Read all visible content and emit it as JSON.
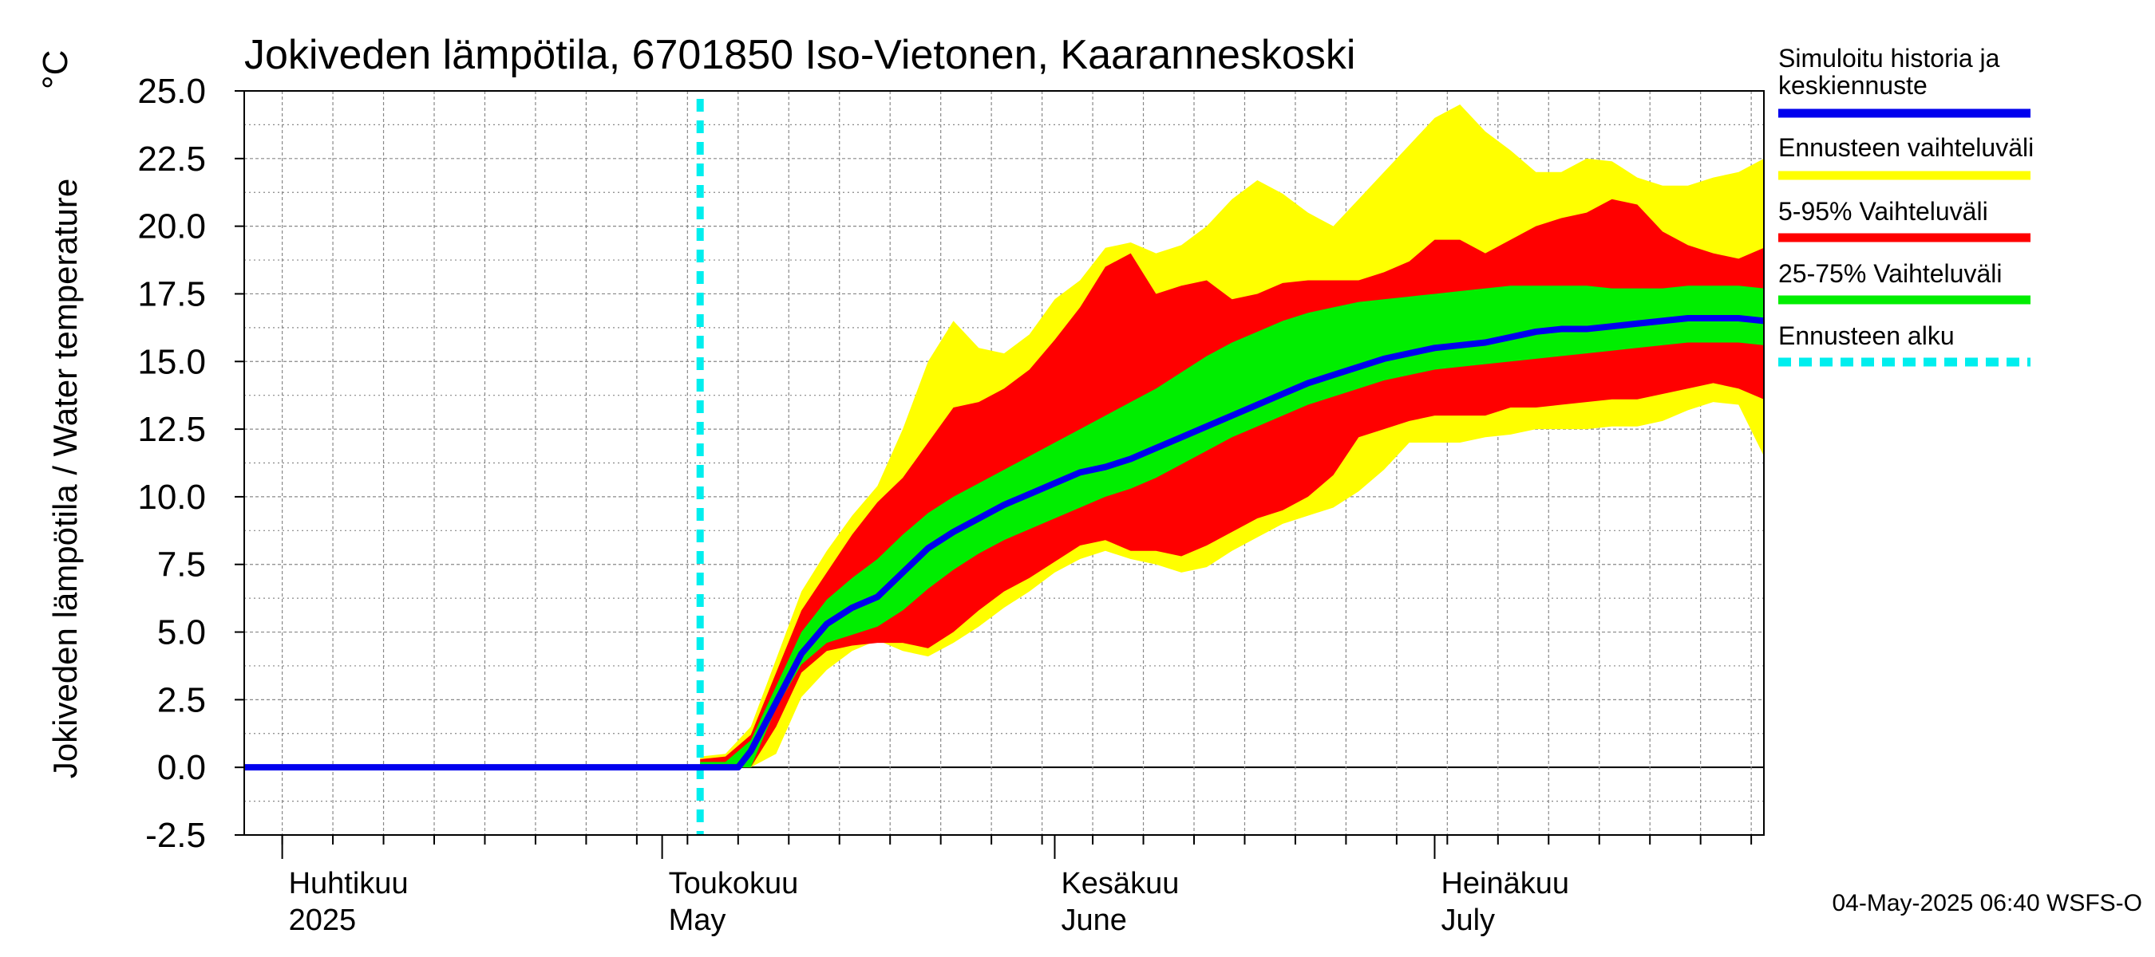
{
  "chart_data": {
    "type": "area",
    "title": "Jokiveden lämpötila, 6701850 Iso-Vietonen, Kaaranneskoski",
    "unit": "°C",
    "ylabel": "Jokiveden lämpötila / Water temperature",
    "ylim": [
      -2.5,
      25.0
    ],
    "yticks": [
      "25.0",
      "22.5",
      "20.0",
      "17.5",
      "15.0",
      "12.5",
      "10.0",
      "7.5",
      "5.0",
      "2.5",
      "0.0",
      "-2.5"
    ],
    "ytick_values": [
      25.0,
      22.5,
      20.0,
      17.5,
      15.0,
      12.5,
      10.0,
      7.5,
      5.0,
      2.5,
      0.0,
      -2.5
    ],
    "x_range_days": [
      -33,
      87
    ],
    "x_units": "days from 1 May 2025",
    "forecast_start_day": 3,
    "months": [
      {
        "day": -30,
        "fi": "Huhtikuu",
        "en": "2025"
      },
      {
        "day": 0,
        "fi": "Toukokuu",
        "en": "May"
      },
      {
        "day": 31,
        "fi": "Kesäkuu",
        "en": "June"
      },
      {
        "day": 61,
        "fi": "Heinäkuu",
        "en": "July"
      }
    ],
    "history_days": [
      -33,
      6
    ],
    "forecast_days": [
      3,
      5,
      7,
      9,
      11,
      13,
      15,
      17,
      19,
      21,
      23,
      25,
      27,
      29,
      31,
      33,
      35,
      37,
      39,
      41,
      43,
      45,
      47,
      49,
      51,
      53,
      55,
      57,
      59,
      61,
      63,
      65,
      67,
      69,
      71,
      73,
      75,
      77,
      79,
      81,
      83,
      85,
      87
    ],
    "series": [
      {
        "name": "Simuloitu historia ja keskiennuste",
        "key": "median",
        "color": "#0000ee",
        "values": [
          0.0,
          0.0,
          0.6,
          2.4,
          4.2,
          5.3,
          5.9,
          6.3,
          7.2,
          8.1,
          8.7,
          9.2,
          9.7,
          10.1,
          10.5,
          10.9,
          11.1,
          11.4,
          11.8,
          12.2,
          12.6,
          13.0,
          13.4,
          13.8,
          14.2,
          14.5,
          14.8,
          15.1,
          15.3,
          15.5,
          15.6,
          15.7,
          15.9,
          16.1,
          16.2,
          16.2,
          16.3,
          16.4,
          16.5,
          16.6,
          16.6,
          16.6,
          16.5
        ]
      },
      {
        "name": "Ennusteen vaihteluväli",
        "key": "range",
        "color": "#ffff00",
        "low": [
          0.0,
          0.0,
          0.0,
          0.5,
          2.6,
          3.6,
          4.3,
          4.7,
          4.3,
          4.1,
          4.6,
          5.2,
          5.9,
          6.5,
          7.2,
          7.7,
          8.0,
          7.7,
          7.5,
          7.2,
          7.4,
          8.0,
          8.5,
          9.0,
          9.3,
          9.6,
          10.2,
          11.0,
          12.0,
          12.0,
          12.0,
          12.2,
          12.3,
          12.5,
          12.5,
          12.5,
          12.6,
          12.6,
          12.8,
          13.2,
          13.5,
          13.4,
          11.5
        ],
        "high": [
          0.4,
          0.5,
          1.5,
          4.0,
          6.5,
          8.0,
          9.3,
          10.4,
          12.5,
          15.0,
          16.5,
          15.5,
          15.3,
          16.0,
          17.3,
          18.0,
          19.2,
          19.4,
          19.0,
          19.3,
          20.0,
          21.0,
          21.7,
          21.2,
          20.5,
          20.0,
          21.0,
          22.0,
          23.0,
          24.0,
          24.5,
          23.5,
          22.8,
          22.0,
          22.0,
          22.5,
          22.4,
          21.8,
          21.5,
          21.5,
          21.8,
          22.0,
          22.5
        ]
      },
      {
        "name": "5-95% Vaihteluväli",
        "key": "p5_95",
        "color": "#ff0000",
        "low": [
          0.0,
          0.0,
          0.0,
          1.5,
          3.5,
          4.3,
          4.5,
          4.6,
          4.6,
          4.4,
          5.0,
          5.8,
          6.5,
          7.0,
          7.6,
          8.2,
          8.4,
          8.0,
          8.0,
          7.8,
          8.2,
          8.7,
          9.2,
          9.5,
          10.0,
          10.8,
          12.2,
          12.5,
          12.8,
          13.0,
          13.0,
          13.0,
          13.3,
          13.3,
          13.4,
          13.5,
          13.6,
          13.6,
          13.8,
          14.0,
          14.2,
          14.0,
          13.6
        ],
        "high": [
          0.3,
          0.4,
          1.2,
          3.5,
          5.8,
          7.2,
          8.6,
          9.8,
          10.7,
          12.0,
          13.3,
          13.5,
          14.0,
          14.7,
          15.8,
          17.0,
          18.5,
          19.0,
          17.5,
          17.8,
          18.0,
          17.3,
          17.5,
          17.9,
          18.0,
          18.0,
          18.0,
          18.3,
          18.7,
          19.5,
          19.5,
          19.0,
          19.5,
          20.0,
          20.3,
          20.5,
          21.0,
          20.8,
          19.8,
          19.3,
          19.0,
          18.8,
          19.2
        ]
      },
      {
        "name": "25-75% Vaihteluväli",
        "key": "p25_75",
        "color": "#00ee00",
        "low": [
          0.0,
          0.0,
          0.0,
          2.2,
          3.8,
          4.6,
          4.9,
          5.2,
          5.8,
          6.6,
          7.3,
          7.9,
          8.4,
          8.8,
          9.2,
          9.6,
          10.0,
          10.3,
          10.7,
          11.2,
          11.7,
          12.2,
          12.6,
          13.0,
          13.4,
          13.7,
          14.0,
          14.3,
          14.5,
          14.7,
          14.8,
          14.9,
          15.0,
          15.1,
          15.2,
          15.3,
          15.4,
          15.5,
          15.6,
          15.7,
          15.7,
          15.7,
          15.6
        ],
        "high": [
          0.2,
          0.2,
          1.0,
          3.0,
          5.0,
          6.2,
          7.0,
          7.7,
          8.6,
          9.4,
          10.0,
          10.5,
          11.0,
          11.5,
          12.0,
          12.5,
          13.0,
          13.5,
          14.0,
          14.6,
          15.2,
          15.7,
          16.1,
          16.5,
          16.8,
          17.0,
          17.2,
          17.3,
          17.4,
          17.5,
          17.6,
          17.7,
          17.8,
          17.8,
          17.8,
          17.8,
          17.7,
          17.7,
          17.7,
          17.8,
          17.8,
          17.8,
          17.7
        ]
      }
    ],
    "legend": [
      {
        "label": "Simuloitu historia ja",
        "label2": "keskiennuste",
        "color": "#0000ee",
        "style": "solid"
      },
      {
        "label": "Ennusteen vaihteluväli",
        "color": "#ffff00",
        "style": "solid"
      },
      {
        "label": "5-95% Vaihteluväli",
        "color": "#ff0000",
        "style": "solid"
      },
      {
        "label": "25-75% Vaihteluväli",
        "color": "#00ee00",
        "style": "solid"
      },
      {
        "label": "Ennusteen alku",
        "color": "#00eeee",
        "style": "dashed"
      }
    ],
    "legend_position": "right",
    "grid": true,
    "footer": "04-May-2025 06:40 WSFS-O"
  }
}
